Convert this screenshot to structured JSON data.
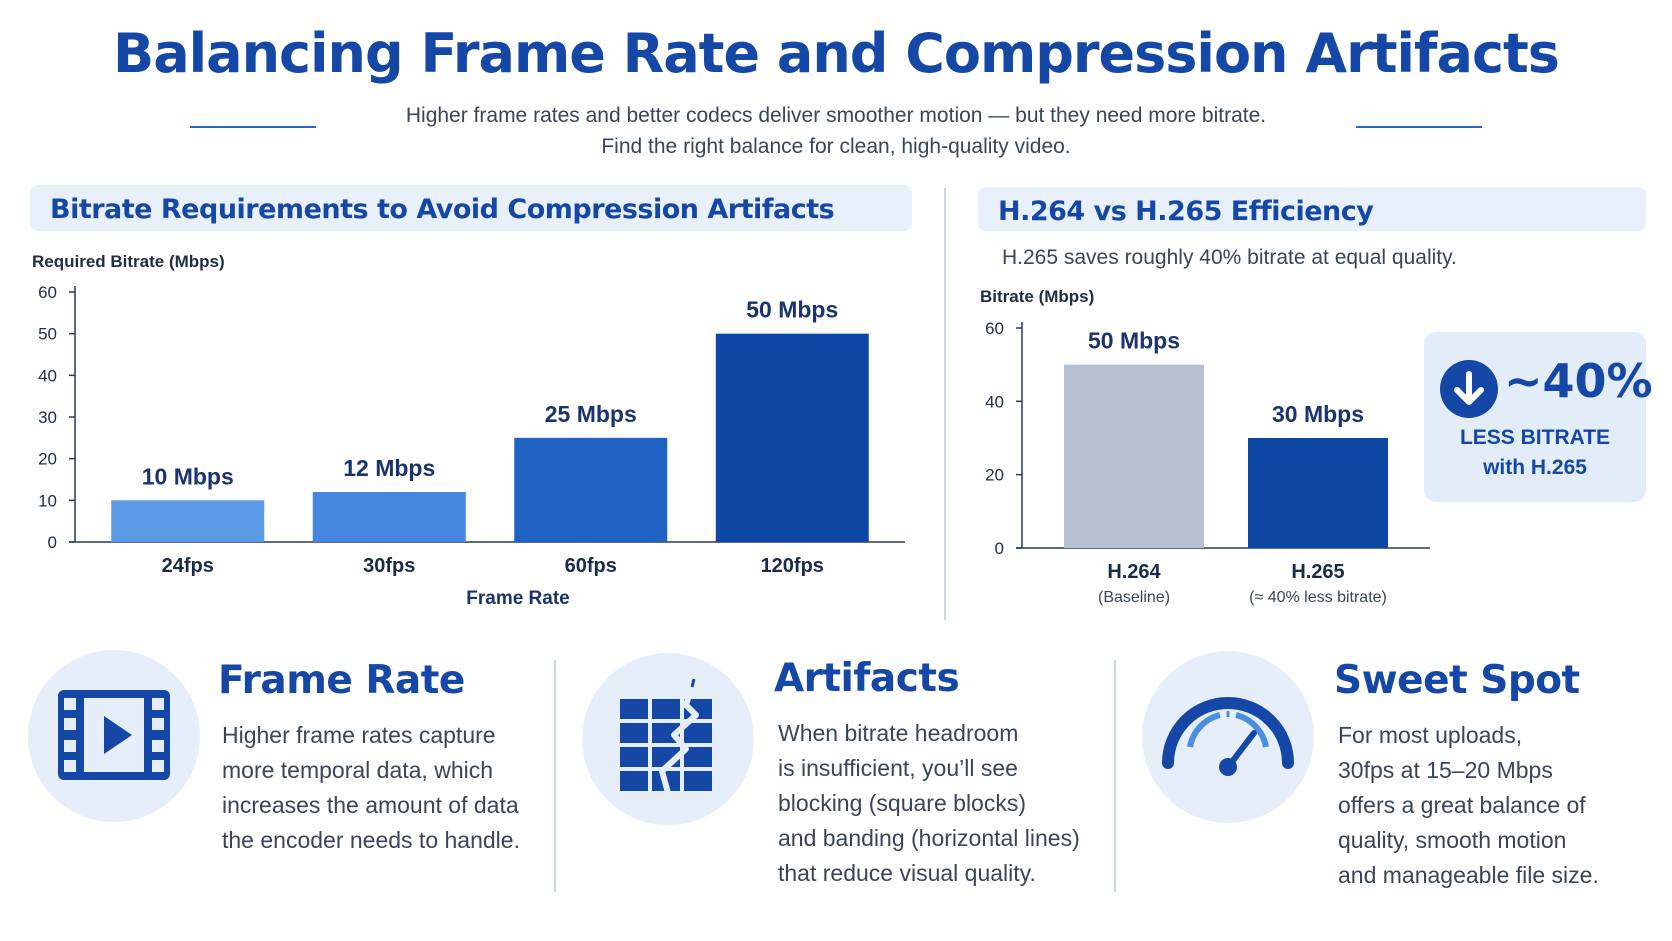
{
  "header": {
    "title": "Balancing Frame Rate and Compression  Artifacts",
    "subtitle_line1": "Higher frame rates and better codecs deliver smoother motion — but they need more bitrate.",
    "subtitle_line2": "Find the right balance for clean, high-quality video."
  },
  "left_panel": {
    "heading": "Bitrate Requirements to Avoid Compression Artifacts"
  },
  "right_panel": {
    "heading": "H.264 vs H.265 Efficiency",
    "note": "H.265 saves roughly 40% bitrate at equal quality.",
    "badge": {
      "value": "~40%",
      "line1": "LESS BITRATE",
      "line2": "with H.265",
      "icon": "arrow-down-icon"
    }
  },
  "chart_data": [
    {
      "type": "bar",
      "title": "",
      "ylabel": "Required Bitrate (Mbps)",
      "xlabel": "Frame Rate",
      "categories": [
        "24fps",
        "30fps",
        "60fps",
        "120fps"
      ],
      "values": [
        10,
        12,
        25,
        50
      ],
      "bar_labels": [
        "10 Mbps",
        "12 Mbps",
        "25 Mbps",
        "50 Mbps"
      ],
      "ylim": [
        0,
        60
      ],
      "yticks": [
        0,
        10,
        20,
        30,
        40,
        50,
        60
      ],
      "colors": [
        "#5b9be6",
        "#4486e0",
        "#1f62c4",
        "#0d46a3"
      ],
      "grid": false
    },
    {
      "type": "bar",
      "title": "",
      "ylabel": "Bitrate (Mbps)",
      "xlabel": "",
      "categories": [
        "H.264",
        "H.265"
      ],
      "sublabels": [
        "(Baseline)",
        "(≈ 40% less bitrate)"
      ],
      "values": [
        50,
        30
      ],
      "bar_labels": [
        "50 Mbps",
        "30 Mbps"
      ],
      "ylim": [
        0,
        60
      ],
      "yticks": [
        0,
        20,
        40,
        60
      ],
      "colors": [
        "#b5c1d1",
        "#0d46a3"
      ],
      "grid": false
    }
  ],
  "features": [
    {
      "icon": "film-play-icon",
      "title": "Frame Rate",
      "lines": [
        "Higher frame rates capture",
        "more temporal data, which",
        "increases the amount of data",
        "the encoder needs to handle."
      ]
    },
    {
      "icon": "broken-blocks-icon",
      "title": "Artifacts",
      "lines": [
        "When bitrate headroom",
        "is insufficient, you’ll see",
        "blocking (square blocks)",
        "and banding (horizontal lines)",
        "that reduce visual quality."
      ]
    },
    {
      "icon": "gauge-icon",
      "title": "Sweet Spot",
      "lines": [
        "For most  uploads,",
        "30fps at 15–20 Mbps",
        "offers a great balance of",
        "quality, smooth motion",
        "and manageable file size."
      ]
    }
  ],
  "colors": {
    "accent": "#1447a6",
    "panel_bg": "#e8f0fb"
  }
}
